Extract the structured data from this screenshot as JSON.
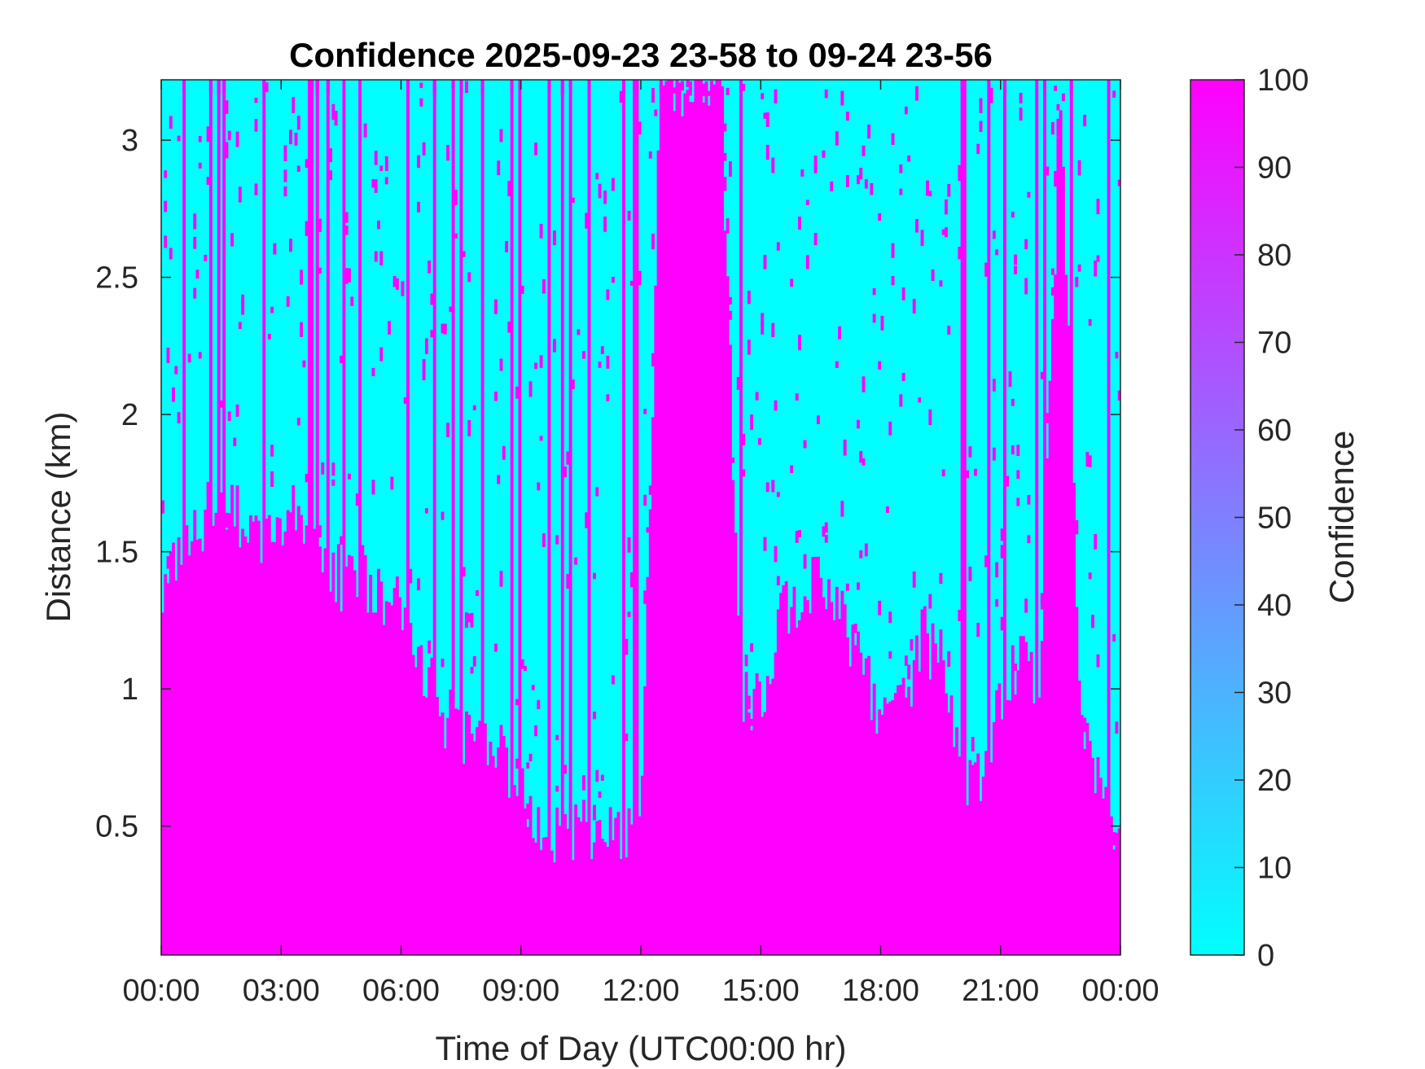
{
  "chart_data": {
    "type": "heatmap",
    "title": "Confidence 2025-09-23 23-58 to 09-24 23-56",
    "xlabel": "Time of Day (UTC00:00 hr)",
    "ylabel": "Distance (km)",
    "x_tick_labels": [
      "00:00",
      "03:00",
      "06:00",
      "09:00",
      "12:00",
      "15:00",
      "18:00",
      "21:00",
      "00:00"
    ],
    "x_ticks_hours": [
      0,
      3,
      6,
      9,
      12,
      15,
      18,
      21,
      24
    ],
    "xlim_hours": [
      0,
      24
    ],
    "y_ticks": [
      0.5,
      1,
      1.5,
      2,
      2.5,
      3
    ],
    "y_tick_labels": [
      "0.5",
      "1",
      "1.5",
      "2",
      "2.5",
      "3"
    ],
    "ylim": [
      0.03,
      3.22
    ],
    "colorbar": {
      "label": "Confidence",
      "ticks": [
        0,
        10,
        20,
        30,
        40,
        50,
        60,
        70,
        80,
        90,
        100
      ],
      "tick_labels": [
        "0",
        "10",
        "20",
        "30",
        "40",
        "50",
        "60",
        "70",
        "80",
        "90",
        "100"
      ],
      "range": [
        0,
        100
      ],
      "color_low": "#00ffff",
      "color_high": "#ff00ff",
      "colormap": "cool"
    },
    "value_high": 100,
    "value_low": 0,
    "high_confidence_top_km_by_hour": {
      "hours": [
        0,
        0.5,
        1,
        1.5,
        2,
        2.5,
        3,
        3.5,
        4,
        4.5,
        5,
        5.5,
        6,
        6.5,
        7,
        7.5,
        8,
        8.5,
        9,
        9.5,
        10,
        10.5,
        11,
        11.5,
        12,
        12.5,
        13,
        13.5,
        14,
        14.5,
        15,
        15.5,
        16,
        16.5,
        17,
        17.5,
        18,
        18.5,
        19,
        19.5,
        20,
        20.5,
        21,
        21.5,
        22,
        22.5,
        23,
        23.5,
        24
      ],
      "values": [
        1.4,
        1.45,
        1.6,
        1.7,
        1.6,
        1.55,
        1.65,
        1.6,
        1.5,
        1.4,
        1.45,
        1.3,
        1.3,
        1.1,
        0.9,
        0.85,
        0.85,
        0.75,
        0.6,
        0.5,
        0.48,
        0.5,
        0.45,
        0.5,
        0.45,
        3.2,
        3.2,
        3.2,
        3.2,
        1.0,
        0.95,
        1.3,
        1.35,
        1.4,
        1.3,
        1.1,
        0.85,
        0.9,
        1.2,
        1.1,
        0.7,
        0.65,
        1.0,
        1.1,
        1.0,
        3.2,
        0.85,
        0.6,
        0.45
      ]
    }
  }
}
